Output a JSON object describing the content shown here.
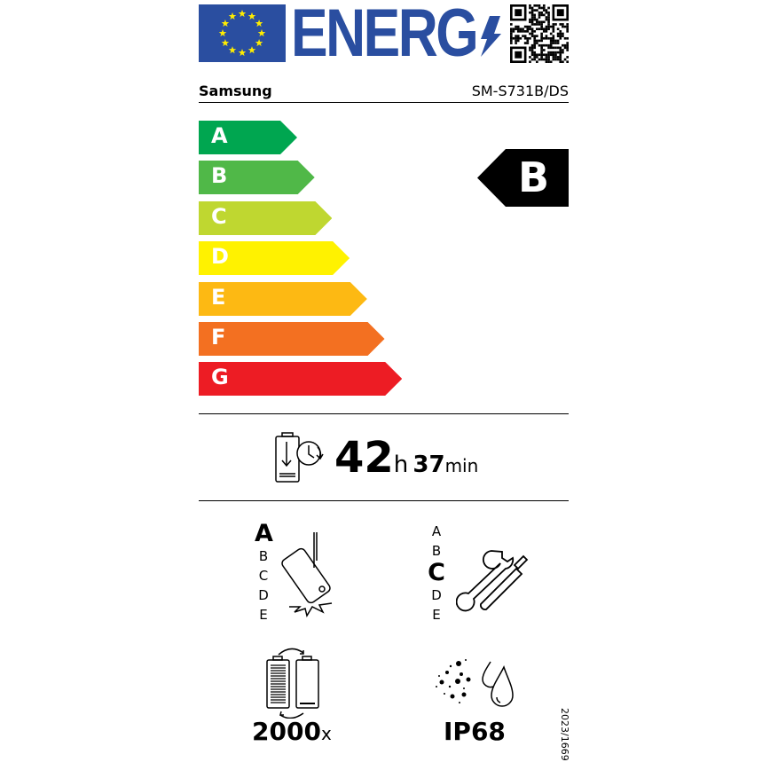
{
  "header": {
    "logo_text": "ENERG",
    "brand": "Samsung",
    "model": "SM-S731B/DS",
    "qr_code": "qr-code-icon"
  },
  "energy_scale": {
    "classes": [
      {
        "label": "A",
        "color": "#00a650"
      },
      {
        "label": "B",
        "color": "#50b848"
      },
      {
        "label": "C",
        "color": "#bfd730"
      },
      {
        "label": "D",
        "color": "#fff200"
      },
      {
        "label": "E",
        "color": "#fdb913"
      },
      {
        "label": "F",
        "color": "#f37021"
      },
      {
        "label": "G",
        "color": "#ed1c24"
      }
    ],
    "rating": "B"
  },
  "battery_endurance": {
    "hours": "42",
    "hours_unit": "h",
    "minutes": "37",
    "minutes_unit": "min"
  },
  "drop_resistance": {
    "classes": [
      "A",
      "B",
      "C",
      "D",
      "E"
    ],
    "selected": "A"
  },
  "repairability": {
    "classes": [
      "A",
      "B",
      "C",
      "D",
      "E"
    ],
    "selected": "C"
  },
  "battery_cycles": {
    "value": "2000",
    "unit": "x"
  },
  "ingress_protection": {
    "value": "IP68"
  },
  "regulation": "2023/1669"
}
